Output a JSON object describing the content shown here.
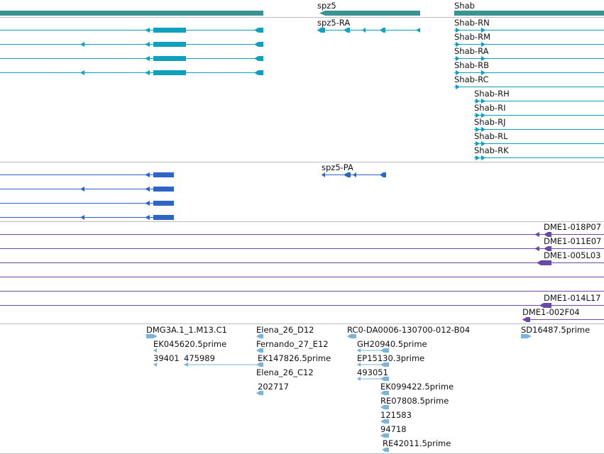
{
  "colors": {
    "gene": "#3a9494",
    "mrna": "#0fa0c0",
    "protein": "#2e66c8",
    "clone": "#6a4aa6",
    "est": "#7ab4dc",
    "divider": "#bdbdbd",
    "text": "#111111"
  },
  "tracks": {
    "genes": {
      "labels": [
        {
          "text": "spz5"
        },
        {
          "text": "Shab"
        }
      ]
    },
    "transcripts": {
      "labels": [
        {
          "text": "spz5-RA"
        },
        {
          "text": "Shab-RN"
        },
        {
          "text": "Shab-RM"
        },
        {
          "text": "Shab-RA"
        },
        {
          "text": "Shab-RB"
        },
        {
          "text": "Shab-RC"
        },
        {
          "text": "Shab-RH"
        },
        {
          "text": "Shab-RI"
        },
        {
          "text": "Shab-RJ"
        },
        {
          "text": "Shab-RL"
        },
        {
          "text": "Shab-RK"
        }
      ]
    },
    "proteins": {
      "labels": [
        {
          "text": "spz5-PA"
        }
      ]
    },
    "clones": {
      "labels": [
        {
          "text": "DME1-018P07"
        },
        {
          "text": "DME1-011E07"
        },
        {
          "text": "DME1-005L03"
        },
        {
          "text": "DME1-014L17"
        },
        {
          "text": "DME1-002F04"
        }
      ]
    },
    "ests": {
      "labels": [
        {
          "text": "DMG3A.1_1.M13.C1"
        },
        {
          "text": "Elena_26_D12"
        },
        {
          "text": "RC0-DA0006-130700-012-B04"
        },
        {
          "text": "SD16487.5prime"
        },
        {
          "text": "EK045620.5prime"
        },
        {
          "text": "Fernando_27_E12"
        },
        {
          "text": "GH20940.5prime"
        },
        {
          "text": "39401"
        },
        {
          "text": "475989"
        },
        {
          "text": "EK147826.5prime"
        },
        {
          "text": "EP15130.3prime"
        },
        {
          "text": "Elena_26_C12"
        },
        {
          "text": "493051"
        },
        {
          "text": "202717"
        },
        {
          "text": "EK099422.5prime"
        },
        {
          "text": "RE07808.5prime"
        },
        {
          "text": "121583"
        },
        {
          "text": "94718"
        },
        {
          "text": "RE42011.5prime"
        }
      ]
    }
  }
}
